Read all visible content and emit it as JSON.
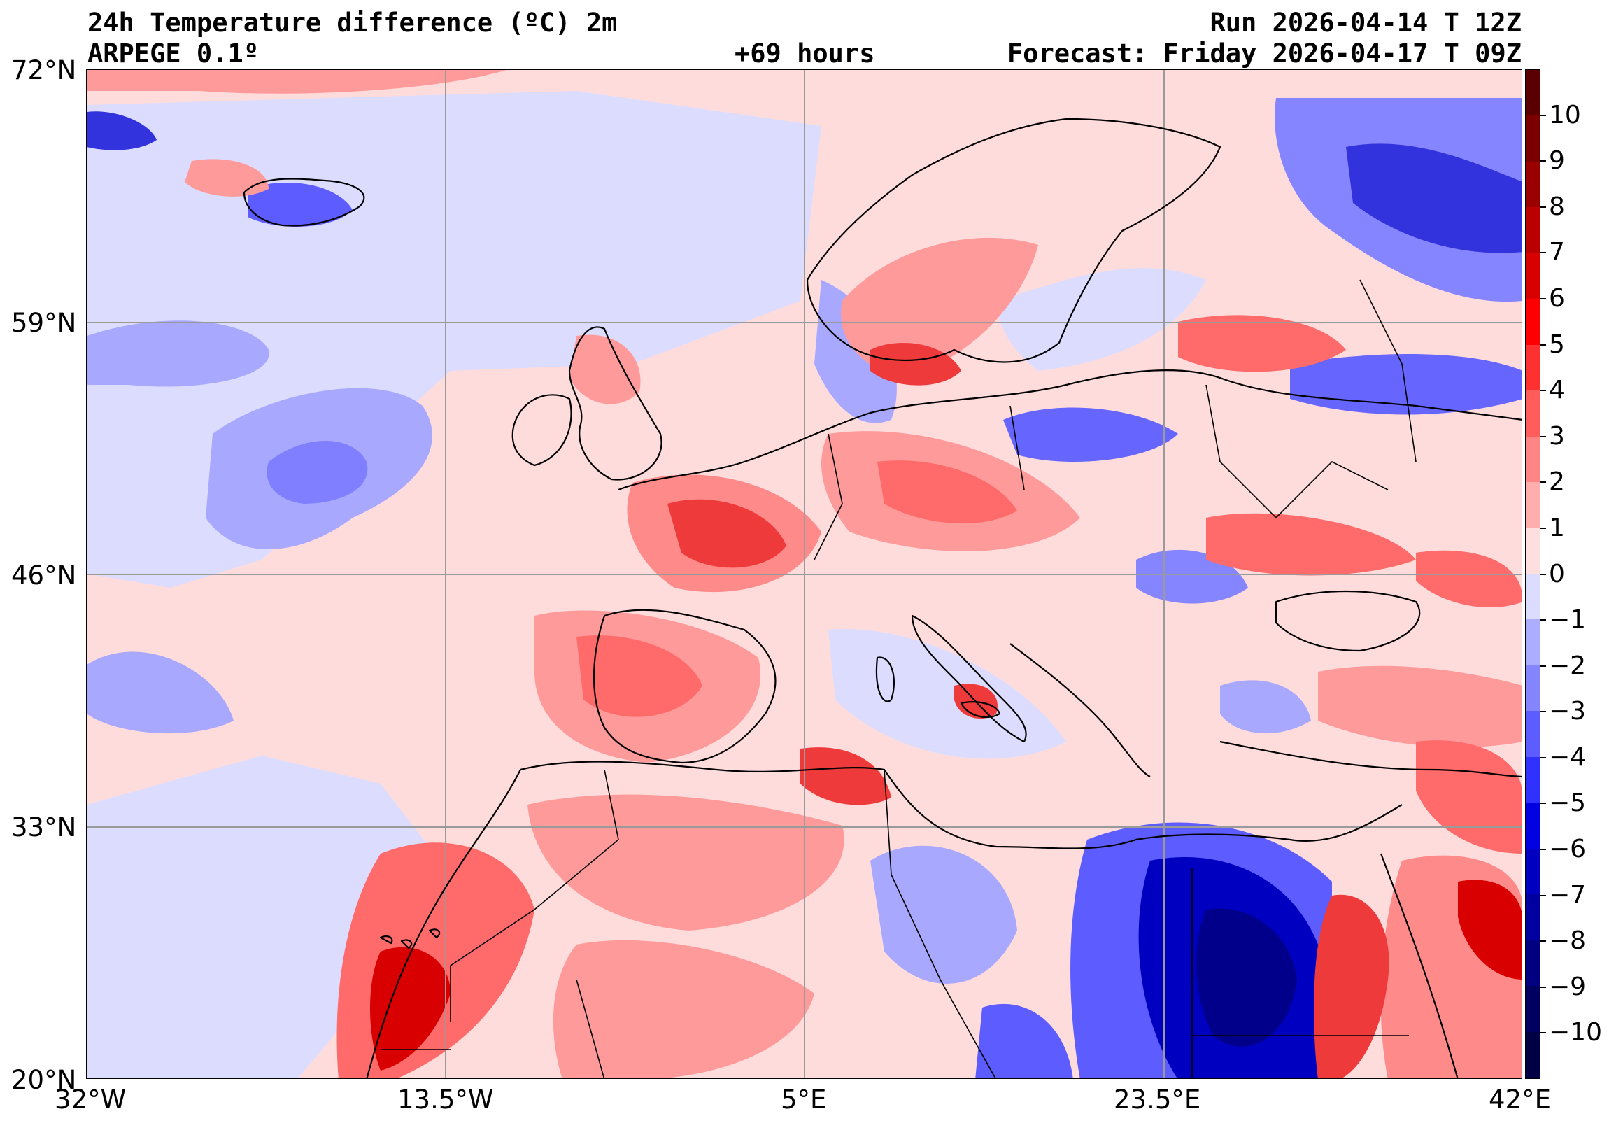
{
  "header": {
    "title": "24h Temperature difference (ºC) 2m",
    "model": "ARPEGE 0.1º",
    "lead": "+69 hours",
    "run": "Run 2026-04-14 T 12Z",
    "forecast": "Forecast: Friday 2026-04-17 T 09Z"
  },
  "axes": {
    "lat_labels": [
      "72°N",
      "59°N",
      "46°N",
      "33°N",
      "20°N"
    ],
    "lon_labels": [
      "32°W",
      "13.5°W",
      "5°E",
      "23.5°E",
      "42°E"
    ]
  },
  "colorbar": {
    "labels": [
      "10",
      "9",
      "8",
      "7",
      "6",
      "5",
      "4",
      "3",
      "2",
      "1",
      "0",
      "−1",
      "−2",
      "−3",
      "−4",
      "−5",
      "−6",
      "−7",
      "−8",
      "−9",
      "−10"
    ],
    "colors": [
      "#5a0000",
      "#7a0000",
      "#9b0000",
      "#bb0000",
      "#d80000",
      "#ff0000",
      "#ff3030",
      "#ff5c5c",
      "#ff8585",
      "#ffadad",
      "#ffdede",
      "#dcdcff",
      "#adadff",
      "#8585ff",
      "#5c5cff",
      "#3030ff",
      "#0000e0",
      "#0000c0",
      "#0000a0",
      "#000080",
      "#000060",
      "#000045"
    ]
  },
  "colors": {
    "warm_light": "#ffdcdc",
    "warm_mid": "#ff9a9a",
    "warm_strong": "#ee3a3a",
    "cool_light": "#dcdcff",
    "cool_mid": "#a8a8ff",
    "cool_strong": "#3333dd",
    "cool_deep": "#00008a",
    "coast": "#000000",
    "grid": "#9a9a9a"
  }
}
